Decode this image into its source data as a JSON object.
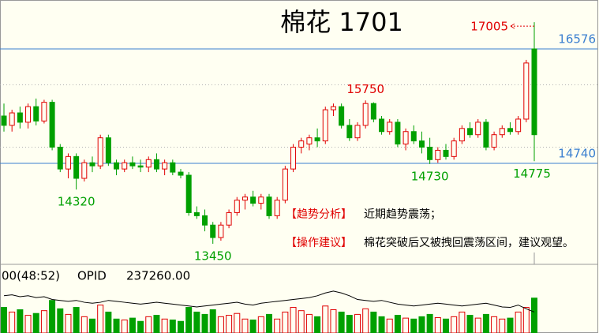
{
  "chart_data": {
    "type": "candlestick",
    "title": "棉花  1701",
    "ylim": [
      13120,
      17361
    ],
    "levels": [
      16576,
      14740
    ],
    "grid_levels": [
      15000,
      16000
    ],
    "up_color": "#e00000",
    "down_color": "#00a000",
    "level_color": "#3a7fd0",
    "ohlc": [
      [
        15500,
        15700,
        15250,
        15350
      ],
      [
        15350,
        15600,
        15250,
        15550
      ],
      [
        15550,
        15650,
        15300,
        15400
      ],
      [
        15400,
        15700,
        15300,
        15650
      ],
      [
        15650,
        15780,
        15350,
        15420
      ],
      [
        15420,
        15760,
        15380,
        15720
      ],
      [
        15720,
        15760,
        14950,
        15000
      ],
      [
        15000,
        15050,
        14600,
        14650
      ],
      [
        14650,
        14900,
        14500,
        14850
      ],
      [
        14850,
        14900,
        14320,
        14500
      ],
      [
        14500,
        14800,
        14450,
        14750
      ],
      [
        14750,
        14850,
        14600,
        14700
      ],
      [
        14700,
        15200,
        14650,
        15150
      ],
      [
        15150,
        15200,
        14700,
        14750
      ],
      [
        14750,
        14800,
        14550,
        14650
      ],
      [
        14650,
        14800,
        14600,
        14750
      ],
      [
        14750,
        14850,
        14650,
        14700
      ],
      [
        14700,
        14800,
        14600,
        14680
      ],
      [
        14680,
        14850,
        14600,
        14800
      ],
      [
        14800,
        14900,
        14600,
        14650
      ],
      [
        14650,
        14800,
        14550,
        14750
      ],
      [
        14750,
        14800,
        14550,
        14600
      ],
      [
        14600,
        14650,
        14500,
        14550
      ],
      [
        14550,
        14600,
        13900,
        13950
      ],
      [
        13950,
        14050,
        13850,
        13900
      ],
      [
        13900,
        14000,
        13650,
        13750
      ],
      [
        13750,
        13800,
        13450,
        13550
      ],
      [
        13550,
        13800,
        13500,
        13750
      ],
      [
        13750,
        14000,
        13700,
        13950
      ],
      [
        13950,
        14200,
        13900,
        14150
      ],
      [
        14150,
        14250,
        14000,
        14200
      ],
      [
        14200,
        14300,
        14050,
        14100
      ],
      [
        14100,
        14250,
        14000,
        14200
      ],
      [
        14200,
        14250,
        13850,
        13900
      ],
      [
        13900,
        14200,
        13850,
        14150
      ],
      [
        14150,
        14700,
        14100,
        14650
      ],
      [
        14650,
        15050,
        14600,
        15000
      ],
      [
        15000,
        15150,
        14900,
        15100
      ],
      [
        15050,
        15200,
        14950,
        15150
      ],
      [
        15150,
        15300,
        15000,
        15100
      ],
      [
        15100,
        15650,
        15050,
        15600
      ],
      [
        15600,
        15700,
        15500,
        15650
      ],
      [
        15650,
        15700,
        15300,
        15350
      ],
      [
        15350,
        15450,
        15100,
        15150
      ],
      [
        15150,
        15400,
        15100,
        15350
      ],
      [
        15350,
        15750,
        15300,
        15700
      ],
      [
        15700,
        15720,
        15400,
        15450
      ],
      [
        15450,
        15500,
        15200,
        15250
      ],
      [
        15250,
        15450,
        15200,
        15400
      ],
      [
        15400,
        15450,
        15000,
        15050
      ],
      [
        15050,
        15300,
        14950,
        15250
      ],
      [
        15250,
        15350,
        15050,
        15100
      ],
      [
        15100,
        15250,
        14900,
        15000
      ],
      [
        15000,
        15150,
        14730,
        14800
      ],
      [
        14800,
        15000,
        14750,
        14950
      ],
      [
        14950,
        15050,
        14800,
        14850
      ],
      [
        14850,
        15150,
        14800,
        15100
      ],
      [
        15100,
        15350,
        15050,
        15300
      ],
      [
        15300,
        15400,
        15150,
        15200
      ],
      [
        15200,
        15450,
        15150,
        15400
      ],
      [
        15400,
        15450,
        14950,
        15000
      ],
      [
        15000,
        15250,
        14950,
        15200
      ],
      [
        15200,
        15350,
        15150,
        15300
      ],
      [
        15300,
        15400,
        15200,
        15250
      ],
      [
        15250,
        15500,
        15200,
        15450
      ],
      [
        15450,
        16400,
        15400,
        16350
      ],
      [
        16576,
        17005,
        14775,
        15200
      ]
    ],
    "volume_ylim": [
      0,
      100
    ],
    "volume": [
      55,
      45,
      50,
      38,
      42,
      48,
      70,
      52,
      40,
      55,
      35,
      30,
      60,
      45,
      30,
      28,
      32,
      25,
      35,
      38,
      30,
      28,
      25,
      55,
      45,
      40,
      50,
      35,
      38,
      42,
      30,
      28,
      35,
      40,
      30,
      45,
      55,
      48,
      40,
      35,
      58,
      50,
      45,
      38,
      40,
      52,
      45,
      35,
      30,
      38,
      32,
      30,
      35,
      40,
      33,
      30,
      35,
      45,
      38,
      32,
      40,
      35,
      30,
      32,
      45,
      55,
      75
    ],
    "opid": [
      80,
      82,
      78,
      80,
      76,
      78,
      72,
      70,
      68,
      70,
      66,
      64,
      66,
      70,
      68,
      66,
      64,
      62,
      64,
      66,
      64,
      62,
      60,
      58,
      56,
      58,
      60,
      62,
      64,
      66,
      62,
      60,
      64,
      66,
      68,
      70,
      72,
      74,
      76,
      80,
      86,
      90,
      86,
      80,
      72,
      70,
      68,
      70,
      66,
      62,
      60,
      58,
      60,
      62,
      64,
      62,
      60,
      58,
      60,
      62,
      64,
      60,
      56,
      55,
      60,
      52,
      45
    ],
    "volume_header": [
      "00(48:52)",
      "OPID",
      "237260.00"
    ],
    "notes": [
      {
        "tag": "【趋势分析】",
        "text": "近期趋势震荡；"
      },
      {
        "tag": "【操作建议】",
        "text": "棉花突破后又被拽回震荡区间，建议观望。"
      }
    ]
  }
}
